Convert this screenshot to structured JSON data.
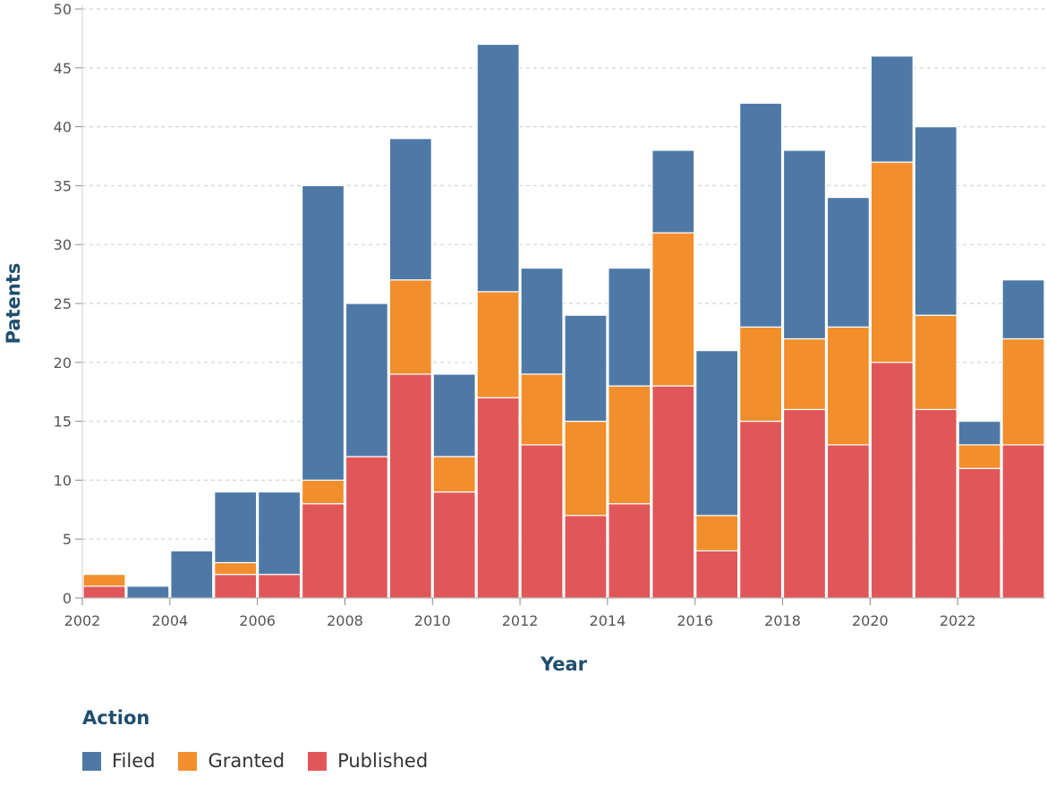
{
  "chart_data": {
    "type": "bar",
    "stacked": true,
    "title": "",
    "xlabel": "Year",
    "ylabel": "Patents",
    "ylim": [
      0,
      50
    ],
    "yticks": [
      0,
      5,
      10,
      15,
      20,
      25,
      30,
      35,
      40,
      45,
      50
    ],
    "xtick_labels": [
      "2002",
      "2004",
      "2006",
      "2008",
      "2010",
      "2012",
      "2014",
      "2016",
      "2018",
      "2020",
      "2022"
    ],
    "categories": [
      "2002",
      "2003",
      "2004",
      "2005",
      "2006",
      "2007",
      "2008",
      "2009",
      "2010",
      "2011",
      "2012",
      "2013",
      "2014",
      "2015",
      "2016",
      "2017",
      "2018",
      "2019",
      "2020",
      "2021",
      "2022",
      "2023"
    ],
    "grid": "horizontal-dashed",
    "series": [
      {
        "name": "Published",
        "color": "#e15759",
        "values": [
          1,
          0,
          0,
          2,
          2,
          8,
          12,
          19,
          9,
          17,
          13,
          7,
          8,
          18,
          4,
          15,
          16,
          13,
          20,
          16,
          11,
          13
        ]
      },
      {
        "name": "Granted",
        "color": "#f28e2b",
        "values": [
          1,
          0,
          0,
          1,
          0,
          2,
          0,
          8,
          3,
          9,
          6,
          8,
          10,
          13,
          3,
          8,
          6,
          10,
          17,
          8,
          2,
          9
        ]
      },
      {
        "name": "Filed",
        "color": "#4e79a7",
        "values": [
          0,
          1,
          4,
          6,
          7,
          25,
          13,
          12,
          7,
          21,
          9,
          9,
          10,
          7,
          14,
          19,
          16,
          11,
          9,
          16,
          2,
          5
        ]
      }
    ]
  },
  "legend": {
    "title": "Action",
    "items": [
      {
        "label": "Filed",
        "color": "#4e79a7"
      },
      {
        "label": "Granted",
        "color": "#f28e2b"
      },
      {
        "label": "Published",
        "color": "#e15759"
      }
    ]
  },
  "colors": {
    "axis_title": "#1f4e6e",
    "tick_text": "#555555",
    "grid": "#cfd4da"
  }
}
